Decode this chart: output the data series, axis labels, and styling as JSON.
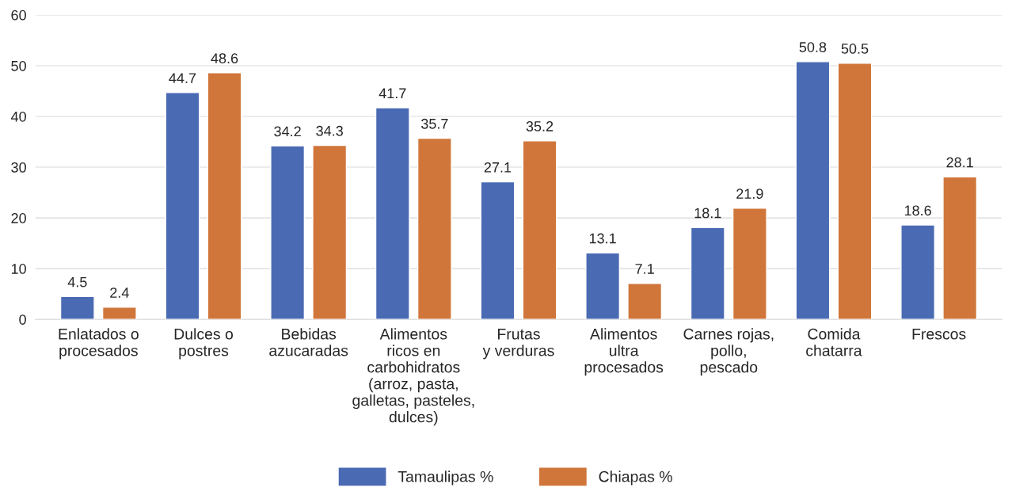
{
  "chart_data": {
    "type": "bar",
    "categories": [
      "Enlatados o\nprocesados",
      "Dulces o\npostres",
      "Bebidas\nazucaradas",
      "Alimentos\nricos en\ncarbohidratos\n(arroz, pasta,\ngalletas, pasteles,\ndulces)",
      "Frutas\ny verduras",
      "Alimentos\nultra\nprocesados",
      "Carnes rojas,\npollo,\npescado",
      "Comida\nchatarra",
      "Frescos"
    ],
    "series": [
      {
        "name": "Tamaulipas %",
        "color": "#4a6ab3",
        "values": [
          4.5,
          44.7,
          34.2,
          41.7,
          27.1,
          13.1,
          18.1,
          50.8,
          18.6
        ]
      },
      {
        "name": "Chiapas %",
        "color": "#d0763a",
        "values": [
          2.4,
          48.6,
          34.3,
          35.7,
          35.2,
          7.1,
          21.9,
          50.5,
          28.1
        ]
      }
    ],
    "ylim": [
      0,
      60
    ],
    "yticks": [
      0,
      10,
      20,
      30,
      40,
      50,
      60
    ],
    "grid": "y",
    "legend": "bottom",
    "data_labels": true
  }
}
